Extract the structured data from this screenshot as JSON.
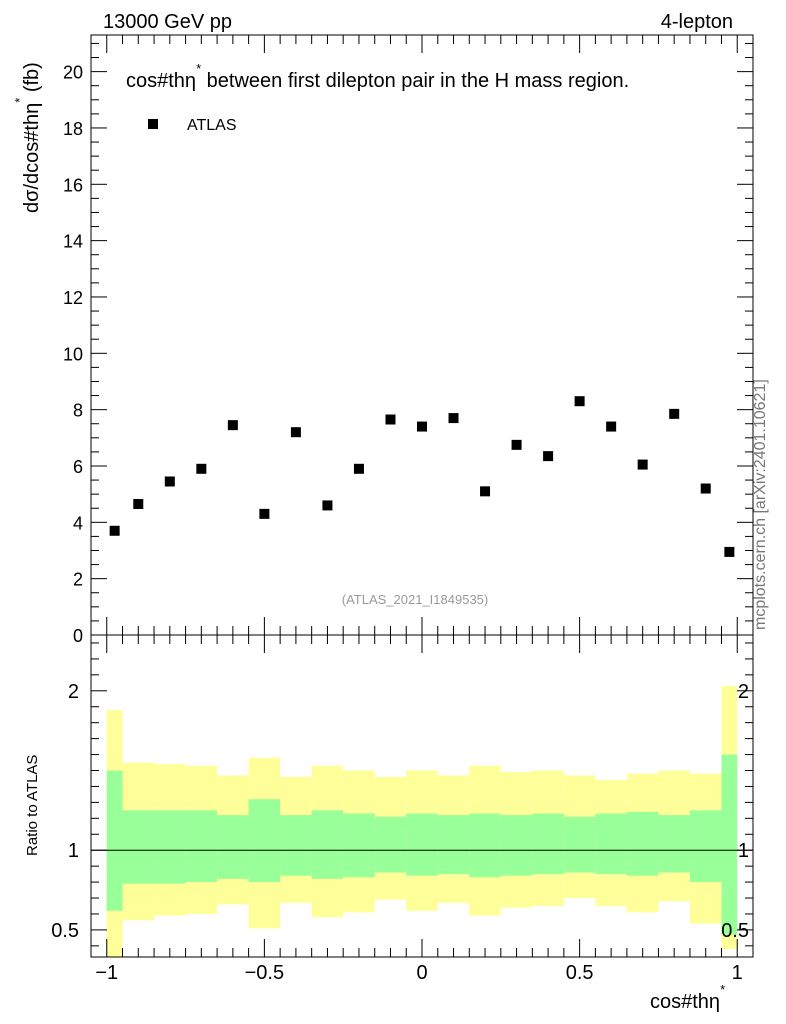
{
  "header": {
    "energy_label": "13000 GeV pp",
    "channel_label": "4-lepton"
  },
  "watermark": "mcplots.cern.ch [arXiv:2401.10621]",
  "colors": {
    "data_marker": "#000000",
    "band_inner": "#99ff99",
    "band_outer": "#ffff99",
    "ref_line": "#000000"
  },
  "chart_data": [
    {
      "type": "scatter",
      "title": "cos#thη* between first dilepton pair in the H mass region.",
      "title_main": "cos#thη",
      "title_sup": "*",
      "title_rest": " between first dilepton pair in the H mass region.",
      "ylabel": "dσ/dcos#thη* (fb)",
      "ylabel_main": "dσ/dcos#thη",
      "ylabel_sup": "*",
      "ylabel_unit": " (fb)",
      "xlim": [
        -1.05,
        1.05
      ],
      "ylim": [
        0,
        21.3
      ],
      "yticks": [
        0,
        2,
        4,
        6,
        8,
        10,
        12,
        14,
        16,
        18,
        20
      ],
      "legend": [
        {
          "name": "ATLAS",
          "marker": "square"
        }
      ],
      "legend_position": "top-left",
      "analysis_ref": "(ATLAS_2021_I1849535)",
      "series": [
        {
          "name": "ATLAS",
          "x": [
            -0.975,
            -0.9,
            -0.8,
            -0.7,
            -0.6,
            -0.5,
            -0.4,
            -0.3,
            -0.2,
            -0.1,
            0.0,
            0.1,
            0.2,
            0.3,
            0.4,
            0.5,
            0.6,
            0.7,
            0.8,
            0.9,
            0.975
          ],
          "values": [
            3.7,
            4.65,
            5.45,
            5.9,
            7.45,
            4.3,
            7.2,
            4.6,
            5.9,
            7.65,
            7.4,
            7.7,
            5.1,
            6.75,
            6.35,
            8.3,
            7.4,
            6.05,
            7.85,
            5.2,
            2.95
          ]
        }
      ]
    },
    {
      "type": "area",
      "ylabel": "Ratio to ATLAS",
      "xlabel": "cos#thη*",
      "xlabel_main": "cos#thη",
      "xlabel_sup": "*",
      "xlim": [
        -1.05,
        1.05
      ],
      "ylim": [
        0.33,
        2.35
      ],
      "yticks": [
        0.5,
        1,
        2
      ],
      "ytick_labels": [
        "0.5",
        "1",
        "2"
      ],
      "xticks": [
        -1,
        -0.5,
        0,
        0.5,
        1
      ],
      "xtick_labels": [
        "−1",
        "−0.5",
        "0",
        "0.5",
        "1"
      ],
      "reference_line": 1,
      "bin_edges": [
        -1.0,
        -0.95,
        -0.85,
        -0.75,
        -0.65,
        -0.55,
        -0.45,
        -0.35,
        -0.25,
        -0.15,
        -0.05,
        0.05,
        0.15,
        0.25,
        0.35,
        0.45,
        0.55,
        0.65,
        0.75,
        0.85,
        0.95,
        1.0
      ],
      "inner_band": {
        "name": "stat",
        "upper": [
          1.5,
          1.25,
          1.25,
          1.25,
          1.22,
          1.32,
          1.22,
          1.25,
          1.23,
          1.21,
          1.23,
          1.22,
          1.23,
          1.22,
          1.23,
          1.21,
          1.23,
          1.24,
          1.22,
          1.25,
          1.6
        ],
        "lower": [
          0.62,
          0.79,
          0.79,
          0.8,
          0.82,
          0.8,
          0.84,
          0.82,
          0.83,
          0.86,
          0.84,
          0.85,
          0.83,
          0.84,
          0.85,
          0.86,
          0.85,
          0.84,
          0.86,
          0.8,
          0.47
        ]
      },
      "outer_band": {
        "name": "total",
        "upper": [
          1.88,
          1.55,
          1.54,
          1.53,
          1.47,
          1.58,
          1.46,
          1.53,
          1.5,
          1.46,
          1.5,
          1.47,
          1.53,
          1.49,
          1.5,
          1.47,
          1.44,
          1.48,
          1.5,
          1.48,
          2.03
        ],
        "lower": [
          0.33,
          0.56,
          0.59,
          0.6,
          0.66,
          0.51,
          0.67,
          0.58,
          0.61,
          0.69,
          0.62,
          0.67,
          0.59,
          0.64,
          0.65,
          0.7,
          0.65,
          0.61,
          0.68,
          0.54,
          0.38
        ]
      }
    }
  ]
}
